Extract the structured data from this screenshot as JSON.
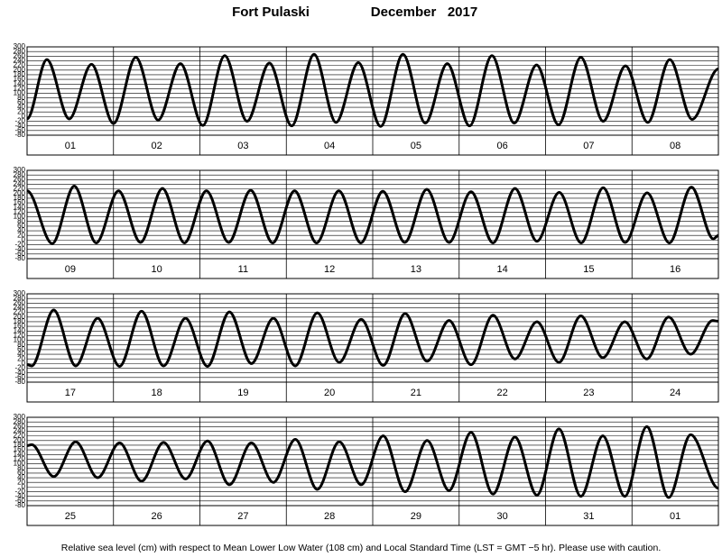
{
  "header": {
    "station": "Fort Pulaski",
    "month": "December   2017"
  },
  "footer": "Relative sea level (cm) with respect to Mean Lower Low Water (108 cm) and Local Standard Time (LST = GMT −5 hr). Please use with caution.",
  "chart_data": [
    {
      "type": "line",
      "categories": [
        "01",
        "02",
        "03",
        "04",
        "05",
        "06",
        "07",
        "08"
      ],
      "xlim": [
        0,
        192
      ],
      "ylim": [
        -80,
        300
      ],
      "yticks": [
        300,
        280,
        260,
        240,
        220,
        200,
        180,
        160,
        140,
        120,
        100,
        80,
        60,
        40,
        20,
        0,
        -20,
        -40,
        -60,
        -80
      ],
      "grid": true,
      "color": "#000000",
      "x": [
        0,
        5.5,
        11.7,
        17.9,
        24.0,
        30.2,
        36.4,
        42.6,
        48.8,
        54.9,
        61.1,
        67.3,
        73.5,
        79.7,
        85.8,
        92.0,
        98.2,
        104.4,
        110.6,
        116.7,
        122.9,
        129.1,
        135.3,
        141.5,
        147.6,
        153.8,
        160.0,
        166.2,
        172.4,
        178.5,
        184.7,
        192
      ],
      "values": [
        -10,
        245,
        -10,
        225,
        -30,
        255,
        -15,
        228,
        -38,
        262,
        -20,
        230,
        -40,
        268,
        -25,
        232,
        -42,
        268,
        -28,
        228,
        -40,
        262,
        -28,
        222,
        -35,
        255,
        -20,
        218,
        -25,
        245,
        -12,
        205
      ]
    },
    {
      "type": "line",
      "categories": [
        "09",
        "10",
        "11",
        "12",
        "13",
        "14",
        "15",
        "16"
      ],
      "xlim": [
        0,
        192
      ],
      "ylim": [
        -80,
        300
      ],
      "yticks": [
        300,
        280,
        260,
        240,
        220,
        200,
        180,
        160,
        140,
        120,
        100,
        80,
        60,
        40,
        20,
        0,
        -20,
        -40,
        -60,
        -80
      ],
      "grid": true,
      "color": "#000000",
      "x": [
        0,
        7.0,
        13.1,
        19.2,
        25.4,
        31.5,
        37.6,
        43.7,
        49.8,
        56.0,
        62.1,
        68.2,
        74.3,
        80.4,
        86.6,
        92.7,
        98.8,
        104.9,
        111.0,
        117.2,
        123.3,
        129.4,
        135.5,
        141.6,
        147.8,
        153.9,
        160.0,
        166.1,
        172.2,
        178.4,
        184.5,
        190.6,
        192
      ],
      "values": [
        212,
        -15,
        232,
        -12,
        212,
        -10,
        222,
        -12,
        212,
        -10,
        214,
        -12,
        212,
        -12,
        212,
        -12,
        210,
        -10,
        218,
        -10,
        208,
        -12,
        222,
        -5,
        205,
        -12,
        225,
        -10,
        203,
        -12,
        228,
        5,
        20
      ]
    },
    {
      "type": "line",
      "categories": [
        "17",
        "18",
        "19",
        "20",
        "21",
        "22",
        "23",
        "24"
      ],
      "xlim": [
        0,
        192
      ],
      "ylim": [
        -80,
        300
      ],
      "yticks": [
        300,
        280,
        260,
        240,
        220,
        200,
        180,
        160,
        140,
        120,
        100,
        80,
        60,
        40,
        20,
        0,
        -20,
        -40,
        -60,
        -80
      ],
      "grid": true,
      "color": "#000000",
      "x": [
        0,
        1.3,
        7.4,
        13.5,
        19.6,
        25.7,
        31.8,
        37.9,
        44.0,
        50.1,
        56.2,
        62.3,
        68.4,
        74.5,
        80.6,
        86.7,
        92.8,
        98.9,
        105.0,
        111.1,
        117.2,
        123.3,
        129.4,
        135.5,
        141.6,
        147.7,
        153.8,
        159.9,
        166.0,
        172.1,
        178.2,
        184.3,
        190.4,
        192
      ],
      "values": [
        -5,
        -10,
        230,
        -10,
        195,
        -12,
        225,
        -10,
        195,
        -12,
        222,
        0,
        195,
        -10,
        218,
        5,
        190,
        -8,
        215,
        10,
        185,
        -5,
        208,
        20,
        180,
        5,
        205,
        25,
        180,
        20,
        200,
        40,
        185,
        182
      ]
    },
    {
      "type": "line",
      "categories": [
        "25",
        "26",
        "27",
        "28",
        "29",
        "30",
        "31",
        "01"
      ],
      "xlim": [
        0,
        192
      ],
      "ylim": [
        -80,
        300
      ],
      "yticks": [
        300,
        280,
        260,
        240,
        220,
        200,
        180,
        160,
        140,
        120,
        100,
        80,
        60,
        40,
        20,
        0,
        -20,
        -40,
        -60,
        -80
      ],
      "grid": true,
      "color": "#000000",
      "x": [
        0,
        1.3,
        7.4,
        13.5,
        19.6,
        25.7,
        31.8,
        37.9,
        44.0,
        50.1,
        56.2,
        62.3,
        68.4,
        74.5,
        80.6,
        86.7,
        92.8,
        98.9,
        105.0,
        111.1,
        117.2,
        123.3,
        129.4,
        135.5,
        141.6,
        147.7,
        153.8,
        159.9,
        166.0,
        172.1,
        178.2,
        184.3,
        192
      ],
      "values": [
        178,
        182,
        45,
        195,
        40,
        190,
        25,
        192,
        35,
        198,
        10,
        190,
        20,
        205,
        -10,
        195,
        10,
        220,
        -20,
        200,
        -15,
        235,
        -30,
        215,
        -35,
        250,
        -40,
        220,
        -40,
        260,
        -45,
        225,
        -5
      ]
    }
  ]
}
